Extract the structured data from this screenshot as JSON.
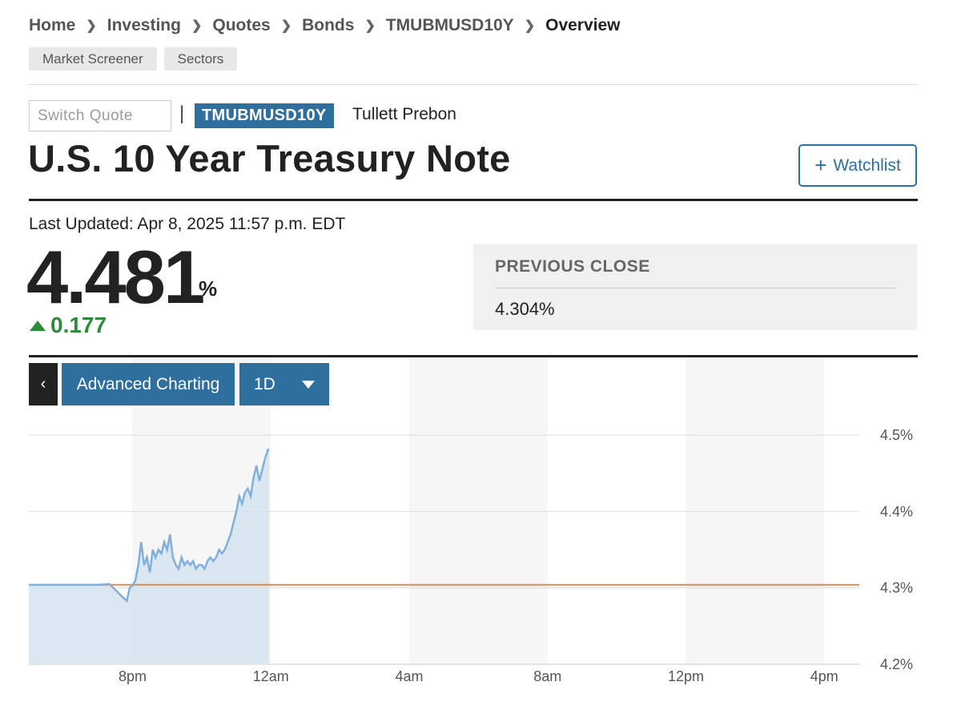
{
  "breadcrumb": [
    "Home",
    "Investing",
    "Quotes",
    "Bonds",
    "TMUBMUSD10Y",
    "Overview"
  ],
  "subnav": [
    "Market Screener",
    "Sectors"
  ],
  "quote": {
    "switch_placeholder": "Switch Quote",
    "pipe": "|",
    "ticker": "TMUBMUSD10Y",
    "source": "Tullett Prebon",
    "title": "U.S. 10 Year Treasury Note",
    "watchlist": "Watchlist",
    "last_updated": "Last Updated: Apr 8, 2025 11:57 p.m. EDT",
    "price": "4.481",
    "price_unit": "%",
    "change": "0.177",
    "previous_close_label": "PREVIOUS CLOSE",
    "previous_close_value": "4.304%"
  },
  "chart_toolbar": {
    "advanced": "Advanced Charting",
    "range": "1D"
  },
  "colors": {
    "accent": "#2e6f9e",
    "up": "#2e8b3a",
    "line": "#7fb0dc",
    "area": "#d6e4ef",
    "prev_close_line": "#e08a4b"
  },
  "icons": {
    "breadcrumb_separator": "chevron-right-icon",
    "watchlist": "plus-icon",
    "back": "chevron-left-icon",
    "range_dropdown": "caret-down-icon",
    "change": "triangle-up-icon"
  },
  "chart_data": {
    "type": "line",
    "x_ticks": [
      "8pm",
      "12am",
      "4am",
      "8am",
      "12pm",
      "4pm"
    ],
    "y_ticks": [
      "4.5%",
      "4.4%",
      "4.3%",
      "4.2%"
    ],
    "ylim": [
      4.2,
      4.5
    ],
    "previous_close": 4.304,
    "grid": true,
    "series": [
      {
        "x": [
          "5:00pm",
          "5:30pm",
          "6:00pm",
          "6:30pm",
          "7:00pm",
          "7:20pm",
          "7:40pm",
          "7:50pm",
          "7:55pm",
          "8:00pm",
          "8:05pm",
          "8:10pm",
          "8:15pm",
          "8:20pm",
          "8:25pm",
          "8:30pm",
          "8:35pm",
          "8:40pm",
          "8:45pm",
          "8:50pm",
          "8:55pm",
          "9:00pm",
          "9:05pm",
          "9:10pm",
          "9:15pm",
          "9:20pm",
          "9:25pm",
          "9:30pm",
          "9:35pm",
          "9:40pm",
          "9:45pm",
          "9:50pm",
          "9:55pm",
          "10:00pm",
          "10:05pm",
          "10:10pm",
          "10:15pm",
          "10:20pm",
          "10:25pm",
          "10:30pm",
          "10:35pm",
          "10:40pm",
          "10:45pm",
          "10:50pm",
          "10:55pm",
          "11:00pm",
          "11:05pm",
          "11:10pm",
          "11:15pm",
          "11:20pm",
          "11:25pm",
          "11:30pm",
          "11:35pm",
          "11:40pm",
          "11:45pm",
          "11:50pm",
          "11:55pm",
          "11:57pm"
        ],
        "y": [
          4.304,
          4.304,
          4.304,
          4.304,
          4.304,
          4.305,
          4.29,
          4.283,
          4.3,
          4.303,
          4.31,
          4.33,
          4.36,
          4.33,
          4.34,
          4.32,
          4.35,
          4.34,
          4.35,
          4.345,
          4.36,
          4.35,
          4.37,
          4.34,
          4.33,
          4.325,
          4.34,
          4.33,
          4.335,
          4.33,
          4.335,
          4.325,
          4.33,
          4.33,
          4.325,
          4.335,
          4.34,
          4.335,
          4.34,
          4.35,
          4.345,
          4.35,
          4.36,
          4.37,
          4.385,
          4.4,
          4.42,
          4.41,
          4.425,
          4.43,
          4.42,
          4.445,
          4.46,
          4.44,
          4.455,
          4.47,
          4.481,
          4.481
        ]
      }
    ]
  }
}
